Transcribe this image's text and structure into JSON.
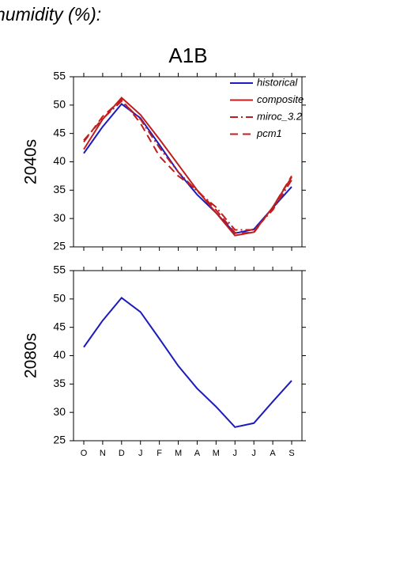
{
  "heading": "humidity (%):",
  "title": "A1B",
  "chart_data": [
    {
      "type": "line",
      "ylabel": "2040s",
      "ylim": [
        25,
        55
      ],
      "yticks": [
        25,
        30,
        35,
        40,
        45,
        50,
        55
      ],
      "legend": "upper right",
      "series": [
        {
          "name": "historical",
          "color": "#1c1cbe",
          "dash": "solid",
          "values": [
            41.5,
            46.2,
            50.2,
            47.7,
            43,
            38.2,
            34.2,
            31,
            27.4,
            28.1,
            31.9,
            35.6
          ]
        },
        {
          "name": "composite",
          "color": "#c01e1e",
          "dash": "solid",
          "values": [
            42.2,
            47.5,
            51.3,
            48.3,
            44,
            39.5,
            35,
            31,
            27,
            27.6,
            32,
            37.3
          ]
        },
        {
          "name": "miroc_3.2",
          "color": "#c01e1e",
          "dash": "dashdot",
          "values": [
            43.8,
            47.6,
            50.7,
            47.5,
            42.5,
            38.2,
            34.8,
            32,
            28,
            28,
            31.5,
            36.8
          ]
        },
        {
          "name": "pcm1",
          "color": "#c01e1e",
          "dash": "dash",
          "values": [
            43.5,
            48,
            51,
            46.8,
            41,
            37.5,
            35,
            31.5,
            27.5,
            27.5,
            32,
            37.5
          ]
        }
      ]
    },
    {
      "type": "line",
      "ylabel": "2080s",
      "ylim": [
        25,
        55
      ],
      "yticks": [
        25,
        30,
        35,
        40,
        45,
        50,
        55
      ],
      "categories": [
        "O",
        "N",
        "D",
        "J",
        "F",
        "M",
        "A",
        "M",
        "J",
        "J",
        "A",
        "S"
      ],
      "series": [
        {
          "name": "historical",
          "color": "#1c1cbe",
          "dash": "solid",
          "values": [
            41.5,
            46.2,
            50.2,
            47.7,
            43,
            38.2,
            34.2,
            31,
            27.4,
            28.1,
            31.9,
            35.6
          ]
        }
      ]
    }
  ]
}
